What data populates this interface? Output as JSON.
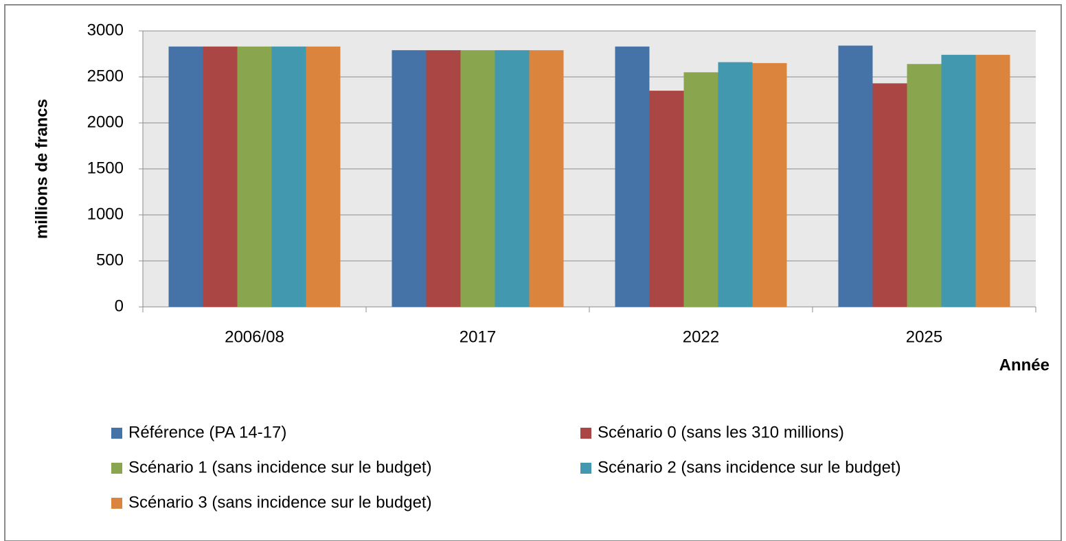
{
  "chart_data": {
    "type": "bar",
    "categories": [
      "2006/08",
      "2017",
      "2022",
      "2025"
    ],
    "series": [
      {
        "name": "Référence (PA 14-17)",
        "color": "#4572a7",
        "values": [
          2830,
          2790,
          2830,
          2840
        ]
      },
      {
        "name": "Scénario 0 (sans les 310 millions)",
        "color": "#aa4643",
        "values": [
          2830,
          2790,
          2350,
          2430
        ]
      },
      {
        "name": "Scénario 1 (sans incidence sur le budget)",
        "color": "#89a54e",
        "values": [
          2830,
          2790,
          2550,
          2640
        ]
      },
      {
        "name": "Scénario 2 (sans incidence sur le budget)",
        "color": "#4198af",
        "values": [
          2830,
          2790,
          2660,
          2740
        ]
      },
      {
        "name": "Scénario 3 (sans incidence sur le budget)",
        "color": "#db843d",
        "values": [
          2830,
          2790,
          2650,
          2740
        ]
      }
    ],
    "y_label": "millions de francs",
    "x_label": "Année",
    "ylim": [
      0,
      3000
    ],
    "yticks": [
      0,
      500,
      1000,
      1500,
      2000,
      2500,
      3000
    ],
    "grid": true
  }
}
